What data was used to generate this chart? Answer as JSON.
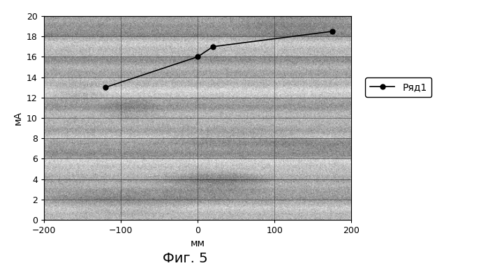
{
  "x_data": [
    -120,
    0,
    20,
    175
  ],
  "y_data": [
    13,
    16,
    17,
    18.5
  ],
  "xlim": [
    -200,
    200
  ],
  "ylim": [
    0,
    20
  ],
  "xticks": [
    -200,
    -100,
    0,
    100,
    200
  ],
  "yticks": [
    0,
    2,
    4,
    6,
    8,
    10,
    12,
    14,
    16,
    18,
    20
  ],
  "xlabel": "мм",
  "ylabel": "мА",
  "legend_label": "Ряд1",
  "line_color": "#000000",
  "marker_color": "#000000",
  "marker": "o",
  "marker_size": 5,
  "background_color": "#ffffff",
  "caption": "Фиг. 5",
  "caption_fontsize": 14,
  "axis_fontsize": 10,
  "tick_fontsize": 9,
  "legend_fontsize": 10,
  "stripe_band_colors": [
    "#a8a8a8",
    "#c8c8c8",
    "#b8b8b8",
    "#d0d0d0",
    "#b0b0b0",
    "#c0c0c0",
    "#b4b4b4",
    "#d4d4d4",
    "#b0b0b0",
    "#c8c8c8"
  ],
  "noise_seed": 10,
  "noise_amplitude": 22
}
